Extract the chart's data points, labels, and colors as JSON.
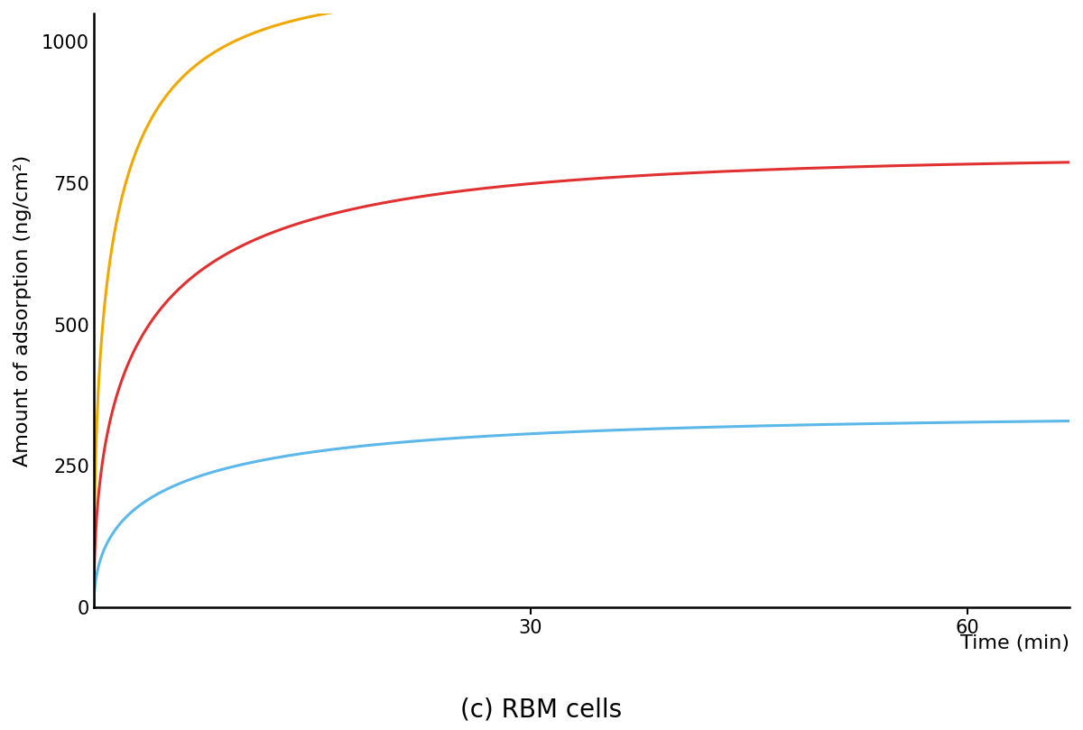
{
  "title": "(c) RBM cells",
  "xlabel_inline": "Time (min)",
  "ylabel": "Amount of adsorption (ng/cm²)",
  "xlim": [
    0,
    67
  ],
  "ylim": [
    0,
    1050
  ],
  "yticks": [
    0,
    250,
    500,
    750,
    1000
  ],
  "xticks": [
    30,
    60
  ],
  "background_color": "#ffffff",
  "curves": {
    "blue": {
      "color": "#5BB8E8",
      "A_inf": 340,
      "k": 0.055
    },
    "red": {
      "color": "#E03030",
      "A_inf": 800,
      "k": 0.065
    },
    "yellow": {
      "color": "#F0A800",
      "A_inf": 1100,
      "k": 0.1
    }
  },
  "line_width": 2.2,
  "title_fontsize": 20,
  "axis_label_fontsize": 16,
  "tick_fontsize": 15
}
